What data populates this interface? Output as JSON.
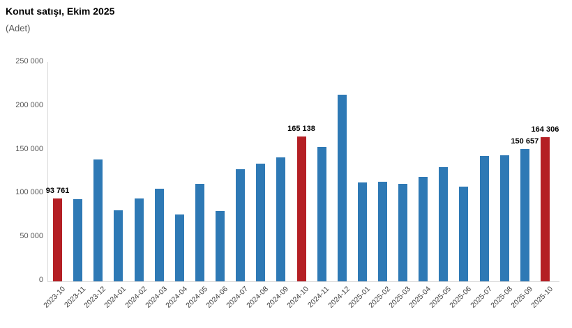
{
  "title": "Konut satışı, Ekim 2025",
  "subtitle": "(Adet)",
  "colors": {
    "bar": "#2e79b5",
    "highlight": "#b41f24",
    "axis_line": "#d9d9d9",
    "y_tick_text": "#595959",
    "x_tick_text": "#404040",
    "data_label_text": "#000000"
  },
  "chart_data": {
    "type": "bar",
    "title": "Konut satışı, Ekim 2025",
    "ylabel": "(Adet)",
    "xlabel": "",
    "ylim": [
      0,
      250000
    ],
    "ytick_interval": 50000,
    "ytick_labels": [
      "0",
      "50 000",
      "100 000",
      "150 000",
      "200 000",
      "250 000"
    ],
    "grid": false,
    "legend": false,
    "categories": [
      "2023-10",
      "2023-11",
      "2023-12",
      "2024-01",
      "2024-02",
      "2024-03",
      "2024-04",
      "2024-05",
      "2024-06",
      "2024-07",
      "2024-08",
      "2024-09",
      "2024-10",
      "2024-11",
      "2024-12",
      "2025-01",
      "2025-02",
      "2025-03",
      "2025-04",
      "2025-05",
      "2025-06",
      "2025-07",
      "2025-08",
      "2025-09",
      "2025-10"
    ],
    "values": [
      93761,
      93178,
      138577,
      80308,
      93902,
      105476,
      75569,
      110588,
      79313,
      127088,
      134155,
      140919,
      165138,
      153213,
      212637,
      112173,
      112818,
      110795,
      118359,
      130025,
      107723,
      142858,
      143319,
      150657,
      164306
    ],
    "highlighted_categories": [
      "2023-10",
      "2024-10",
      "2025-10"
    ],
    "data_labels": [
      {
        "category": "2023-10",
        "text": "93 761"
      },
      {
        "category": "2024-10",
        "text": "165 138"
      },
      {
        "category": "2025-09",
        "text": "150 657"
      },
      {
        "category": "2025-10",
        "text": "164 306"
      }
    ]
  }
}
